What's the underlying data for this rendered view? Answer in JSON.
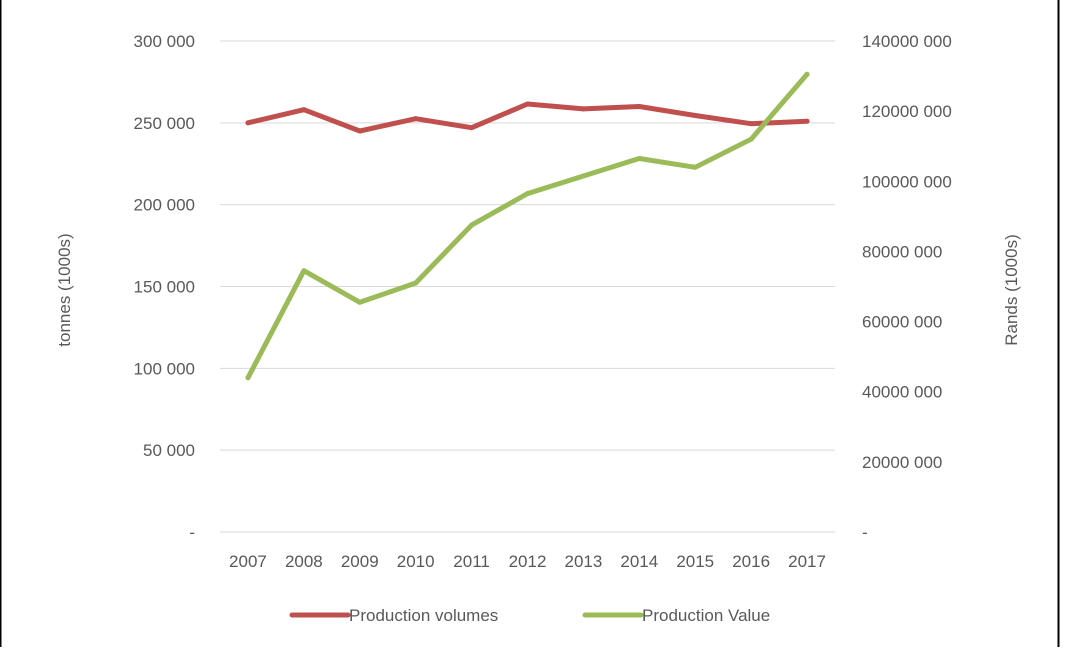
{
  "chart_data": {
    "type": "line",
    "title": "",
    "xlabel": "",
    "ylabel": "tonnes (1000s)",
    "y2label": "Rands (1000s)",
    "categories": [
      "2007",
      "2008",
      "2009",
      "2010",
      "2011",
      "2012",
      "2013",
      "2014",
      "2015",
      "2016",
      "2017"
    ],
    "ylim": [
      0,
      300000
    ],
    "y2lim": [
      0,
      140000000
    ],
    "y_ticks": [
      {
        "value": 0,
        "label": "-"
      },
      {
        "value": 50000,
        "label": "50 000"
      },
      {
        "value": 100000,
        "label": "100 000"
      },
      {
        "value": 150000,
        "label": "150 000"
      },
      {
        "value": 200000,
        "label": "200 000"
      },
      {
        "value": 250000,
        "label": "250 000"
      },
      {
        "value": 300000,
        "label": "300 000"
      }
    ],
    "y2_ticks": [
      {
        "value": 0,
        "label": "-"
      },
      {
        "value": 20000000,
        "label": "20000 000"
      },
      {
        "value": 40000000,
        "label": "40000 000"
      },
      {
        "value": 60000000,
        "label": "60000 000"
      },
      {
        "value": 80000000,
        "label": "80000 000"
      },
      {
        "value": 100000000,
        "label": "100000 000"
      },
      {
        "value": 120000000,
        "label": "120000 000"
      },
      {
        "value": 140000000,
        "label": "140000 000"
      }
    ],
    "series": [
      {
        "name": "Production volumes",
        "axis": "left",
        "color": "#c0504d",
        "values": [
          250000,
          258000,
          245000,
          252500,
          247000,
          261500,
          258500,
          260000,
          254500,
          249500,
          251000
        ]
      },
      {
        "name": "Production Value",
        "axis": "right",
        "color": "#9bbb59",
        "values": [
          44000000,
          74500000,
          65500000,
          71000000,
          87500000,
          96500000,
          101500000,
          106500000,
          104000000,
          112000000,
          130500000
        ]
      }
    ],
    "grid": true,
    "legend_position": "bottom"
  }
}
